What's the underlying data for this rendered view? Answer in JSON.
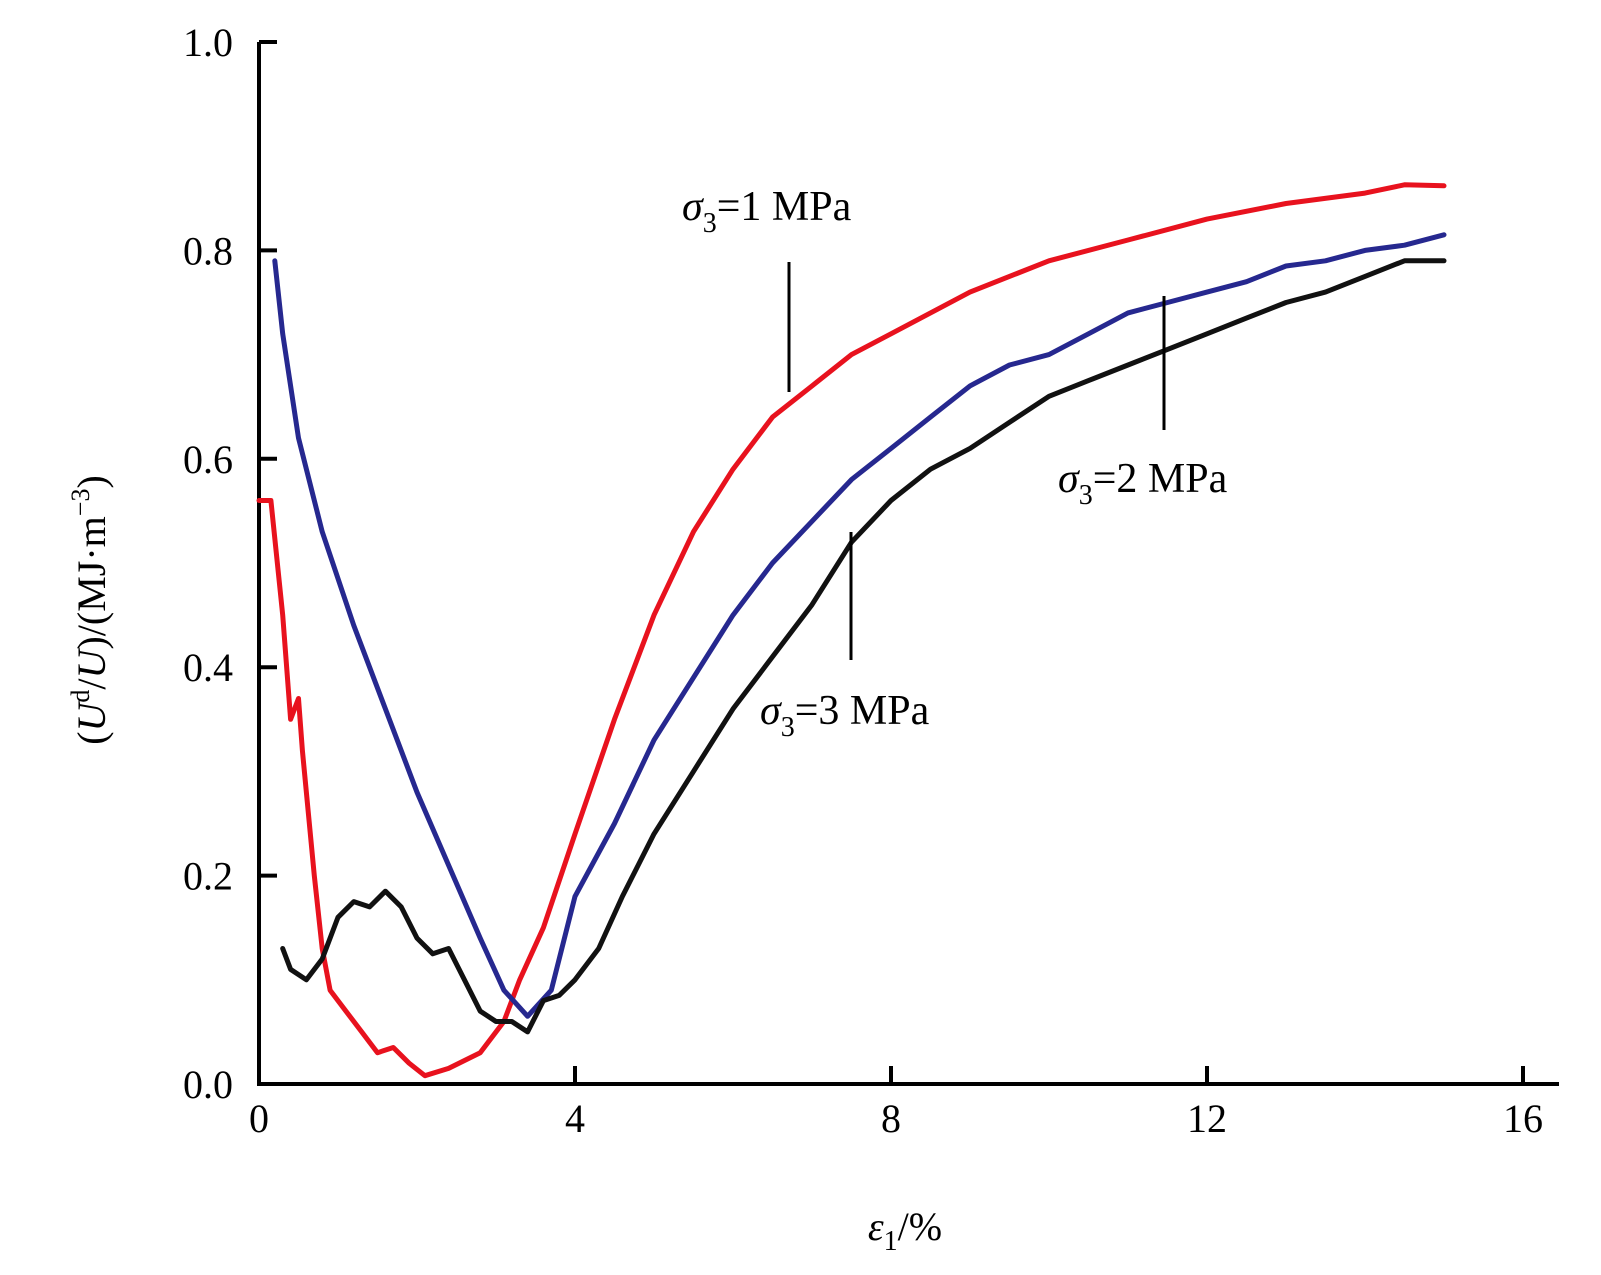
{
  "chart_data": {
    "type": "line",
    "xlabel": {
      "symbol": "ε",
      "subscript": "1",
      "rest": "/%"
    },
    "ylabel": {
      "open": "(",
      "u1": "U",
      "sup_d": "d",
      "slash": "/",
      "u2": "U",
      "mid": ")/(MJ·m",
      "sup_exp": "−3",
      "close": ")"
    },
    "xlim": [
      0,
      16
    ],
    "ylim": [
      0,
      1.0
    ],
    "x_ticks": [
      0,
      4,
      8,
      12,
      16
    ],
    "x_tick_labels": [
      "0",
      "4",
      "8",
      "12",
      "16"
    ],
    "y_ticks": [
      0,
      0.2,
      0.4,
      0.6,
      0.8,
      1.0
    ],
    "y_tick_labels": [
      "0.0",
      "0.2",
      "0.4",
      "0.6",
      "0.8",
      "1.0"
    ],
    "grid": false,
    "legend": "none",
    "series": [
      {
        "name": "σ3=1 MPa",
        "color": "#e8121e",
        "points": [
          [
            0.0,
            0.56
          ],
          [
            0.15,
            0.56
          ],
          [
            0.3,
            0.45
          ],
          [
            0.4,
            0.35
          ],
          [
            0.5,
            0.37
          ],
          [
            0.55,
            0.32
          ],
          [
            0.7,
            0.2
          ],
          [
            0.8,
            0.13
          ],
          [
            0.9,
            0.09
          ],
          [
            1.1,
            0.07
          ],
          [
            1.3,
            0.05
          ],
          [
            1.5,
            0.03
          ],
          [
            1.7,
            0.035
          ],
          [
            1.9,
            0.02
          ],
          [
            2.1,
            0.008
          ],
          [
            2.4,
            0.015
          ],
          [
            2.8,
            0.03
          ],
          [
            3.1,
            0.06
          ],
          [
            3.3,
            0.1
          ],
          [
            3.6,
            0.15
          ],
          [
            4.0,
            0.24
          ],
          [
            4.5,
            0.35
          ],
          [
            5.0,
            0.45
          ],
          [
            5.5,
            0.53
          ],
          [
            6.0,
            0.59
          ],
          [
            6.5,
            0.64
          ],
          [
            7.0,
            0.67
          ],
          [
            7.5,
            0.7
          ],
          [
            8.0,
            0.72
          ],
          [
            9.0,
            0.76
          ],
          [
            10.0,
            0.79
          ],
          [
            11.0,
            0.81
          ],
          [
            12.0,
            0.83
          ],
          [
            13.0,
            0.845
          ],
          [
            14.0,
            0.855
          ],
          [
            14.5,
            0.863
          ],
          [
            15.0,
            0.862
          ]
        ]
      },
      {
        "name": "σ3=2 MPa",
        "color": "#26288f",
        "points": [
          [
            0.2,
            0.79
          ],
          [
            0.3,
            0.72
          ],
          [
            0.5,
            0.62
          ],
          [
            0.8,
            0.53
          ],
          [
            1.2,
            0.44
          ],
          [
            1.6,
            0.36
          ],
          [
            2.0,
            0.28
          ],
          [
            2.4,
            0.21
          ],
          [
            2.8,
            0.14
          ],
          [
            3.1,
            0.09
          ],
          [
            3.4,
            0.065
          ],
          [
            3.7,
            0.09
          ],
          [
            4.0,
            0.18
          ],
          [
            4.5,
            0.25
          ],
          [
            5.0,
            0.33
          ],
          [
            5.5,
            0.39
          ],
          [
            6.0,
            0.45
          ],
          [
            6.5,
            0.5
          ],
          [
            7.0,
            0.54
          ],
          [
            7.5,
            0.58
          ],
          [
            8.0,
            0.61
          ],
          [
            8.5,
            0.64
          ],
          [
            9.0,
            0.67
          ],
          [
            9.5,
            0.69
          ],
          [
            10.0,
            0.7
          ],
          [
            10.5,
            0.72
          ],
          [
            11.0,
            0.74
          ],
          [
            11.5,
            0.75
          ],
          [
            12.0,
            0.76
          ],
          [
            12.5,
            0.77
          ],
          [
            13.0,
            0.785
          ],
          [
            13.5,
            0.79
          ],
          [
            14.0,
            0.8
          ],
          [
            14.5,
            0.805
          ],
          [
            15.0,
            0.815
          ]
        ]
      },
      {
        "name": "σ3=3 MPa",
        "color": "#111111",
        "points": [
          [
            0.3,
            0.13
          ],
          [
            0.4,
            0.11
          ],
          [
            0.6,
            0.1
          ],
          [
            0.8,
            0.12
          ],
          [
            1.0,
            0.16
          ],
          [
            1.2,
            0.175
          ],
          [
            1.4,
            0.17
          ],
          [
            1.6,
            0.185
          ],
          [
            1.8,
            0.17
          ],
          [
            2.0,
            0.14
          ],
          [
            2.2,
            0.125
          ],
          [
            2.4,
            0.13
          ],
          [
            2.6,
            0.1
          ],
          [
            2.8,
            0.07
          ],
          [
            3.0,
            0.06
          ],
          [
            3.2,
            0.06
          ],
          [
            3.4,
            0.05
          ],
          [
            3.6,
            0.08
          ],
          [
            3.8,
            0.085
          ],
          [
            4.0,
            0.1
          ],
          [
            4.3,
            0.13
          ],
          [
            4.6,
            0.18
          ],
          [
            5.0,
            0.24
          ],
          [
            5.5,
            0.3
          ],
          [
            6.0,
            0.36
          ],
          [
            6.5,
            0.41
          ],
          [
            7.0,
            0.46
          ],
          [
            7.5,
            0.52
          ],
          [
            8.0,
            0.56
          ],
          [
            8.5,
            0.59
          ],
          [
            9.0,
            0.61
          ],
          [
            9.5,
            0.635
          ],
          [
            10.0,
            0.66
          ],
          [
            10.5,
            0.675
          ],
          [
            11.0,
            0.69
          ],
          [
            11.5,
            0.705
          ],
          [
            12.0,
            0.72
          ],
          [
            12.5,
            0.735
          ],
          [
            13.0,
            0.75
          ],
          [
            13.5,
            0.76
          ],
          [
            14.0,
            0.775
          ],
          [
            14.5,
            0.79
          ],
          [
            15.0,
            0.79
          ]
        ]
      }
    ],
    "annotations": [
      {
        "sym": "σ",
        "sub": "3",
        "text": "=1 MPa",
        "series": 0
      },
      {
        "sym": "σ",
        "sub": "3",
        "text": "=2 MPa",
        "series": 1
      },
      {
        "sym": "σ",
        "sub": "3",
        "text": "=3 MPa",
        "series": 2
      }
    ]
  }
}
